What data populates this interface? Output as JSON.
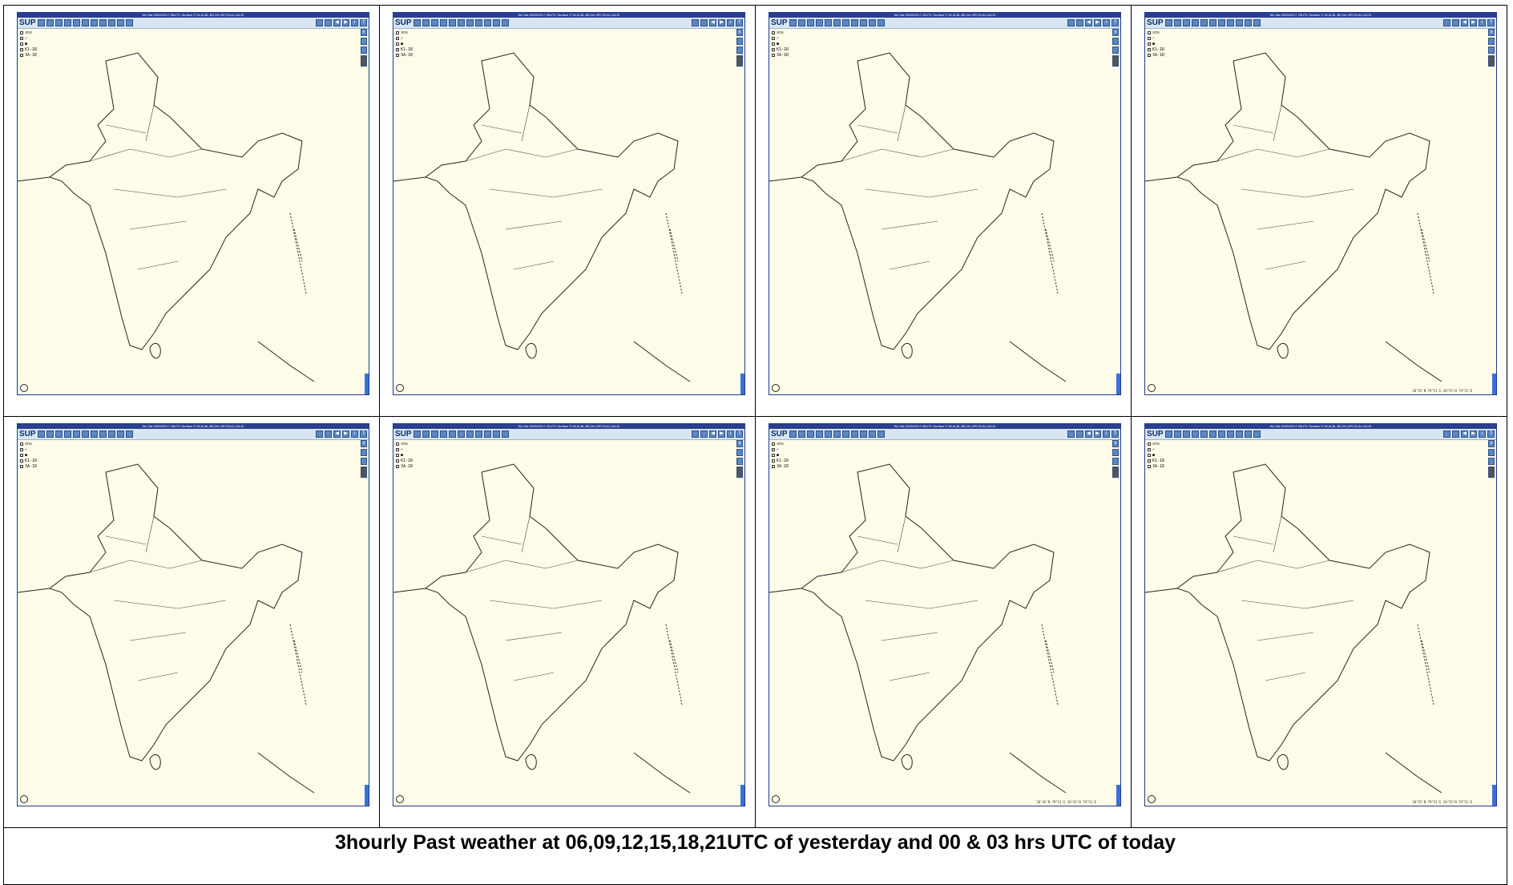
{
  "panels": [
    {
      "titlebar": "Wx Sat  20/05/2017 06UTC  Surface  IT,IN,IA,BL,BD,ML,NP,CN,AL,DA,EI",
      "legend": [
        "sns",
        "✓",
        "●",
        "K1-1R",
        "3A-1R"
      ],
      "coords": ""
    },
    {
      "titlebar": "Wx Sat  20/05/2017 09UTC  Surface  IT,IN,IA,BL,BD,ML,NP,CN,AL,DA,EI",
      "legend": [
        "sns",
        "✓",
        "●",
        "K1-1R",
        "3A-1R"
      ],
      "coords": ""
    },
    {
      "titlebar": "Wx Sat  20/05/2017 12UTC  Surface  IT,IN,IA,BL,BD,ML,NP,CN,AL,DA,EI",
      "legend": [
        "sns",
        "✓",
        "●",
        "K1-1R",
        "3A-1R"
      ],
      "coords": ""
    },
    {
      "titlebar": "Wx Sat  20/05/2017 15UTC  Surface  IT,IN,IA,BL,BD,ML,NP,CN,AL,DA,EI",
      "legend": [
        "sns",
        "✓",
        "●",
        "K1-1R",
        "3A-1R"
      ],
      "coords": "20°55'N 79°51'E     20°55'N 79°51'E"
    },
    {
      "titlebar": "Wx Sat  20/05/2017 18UTC  Surface  IT,IN,IA,BL,BD,ML,NP,CN,AL,DA,EI",
      "legend": [
        "sns",
        "✓",
        "●",
        "K1-1R",
        "3A-1R"
      ],
      "coords": ""
    },
    {
      "titlebar": "Wx Sat  20/05/2017 21UTC  Surface  IT,IN,IA,BL,BD,ML,NP,CN,AL,DA,EI",
      "legend": [
        "sns",
        "✓",
        "●",
        "K1-1R",
        "3A-1R"
      ],
      "coords": ""
    },
    {
      "titlebar": "Wx Sat  21/05/2017 00UTC  Surface  IT,IN,IA,BL,BD,ML,NP,CN,AL,DA,EI",
      "legend": [
        "sns",
        "✓",
        "●",
        "K1-1R",
        "3A-1R"
      ],
      "coords": "20°45'N 79°51'E     20°45'N 79°51'E"
    },
    {
      "titlebar": "Wx Sat  21/05/2017 03UTC  Surface  IT,IN,IA,BL,BD,ML,NP,CN,AL,DA,EI",
      "legend": [
        "sns",
        "✓",
        "●",
        "K1-1R",
        "3A-1R"
      ],
      "coords": "20°55'N 79°51'E     20°55'N 79°51'E"
    }
  ],
  "toolbar": {
    "logo": "SUP"
  },
  "caption": "3hourly Past weather at 06,09,12,15,18,21UTC of yesterday and 00 & 03 hrs UTC of today"
}
